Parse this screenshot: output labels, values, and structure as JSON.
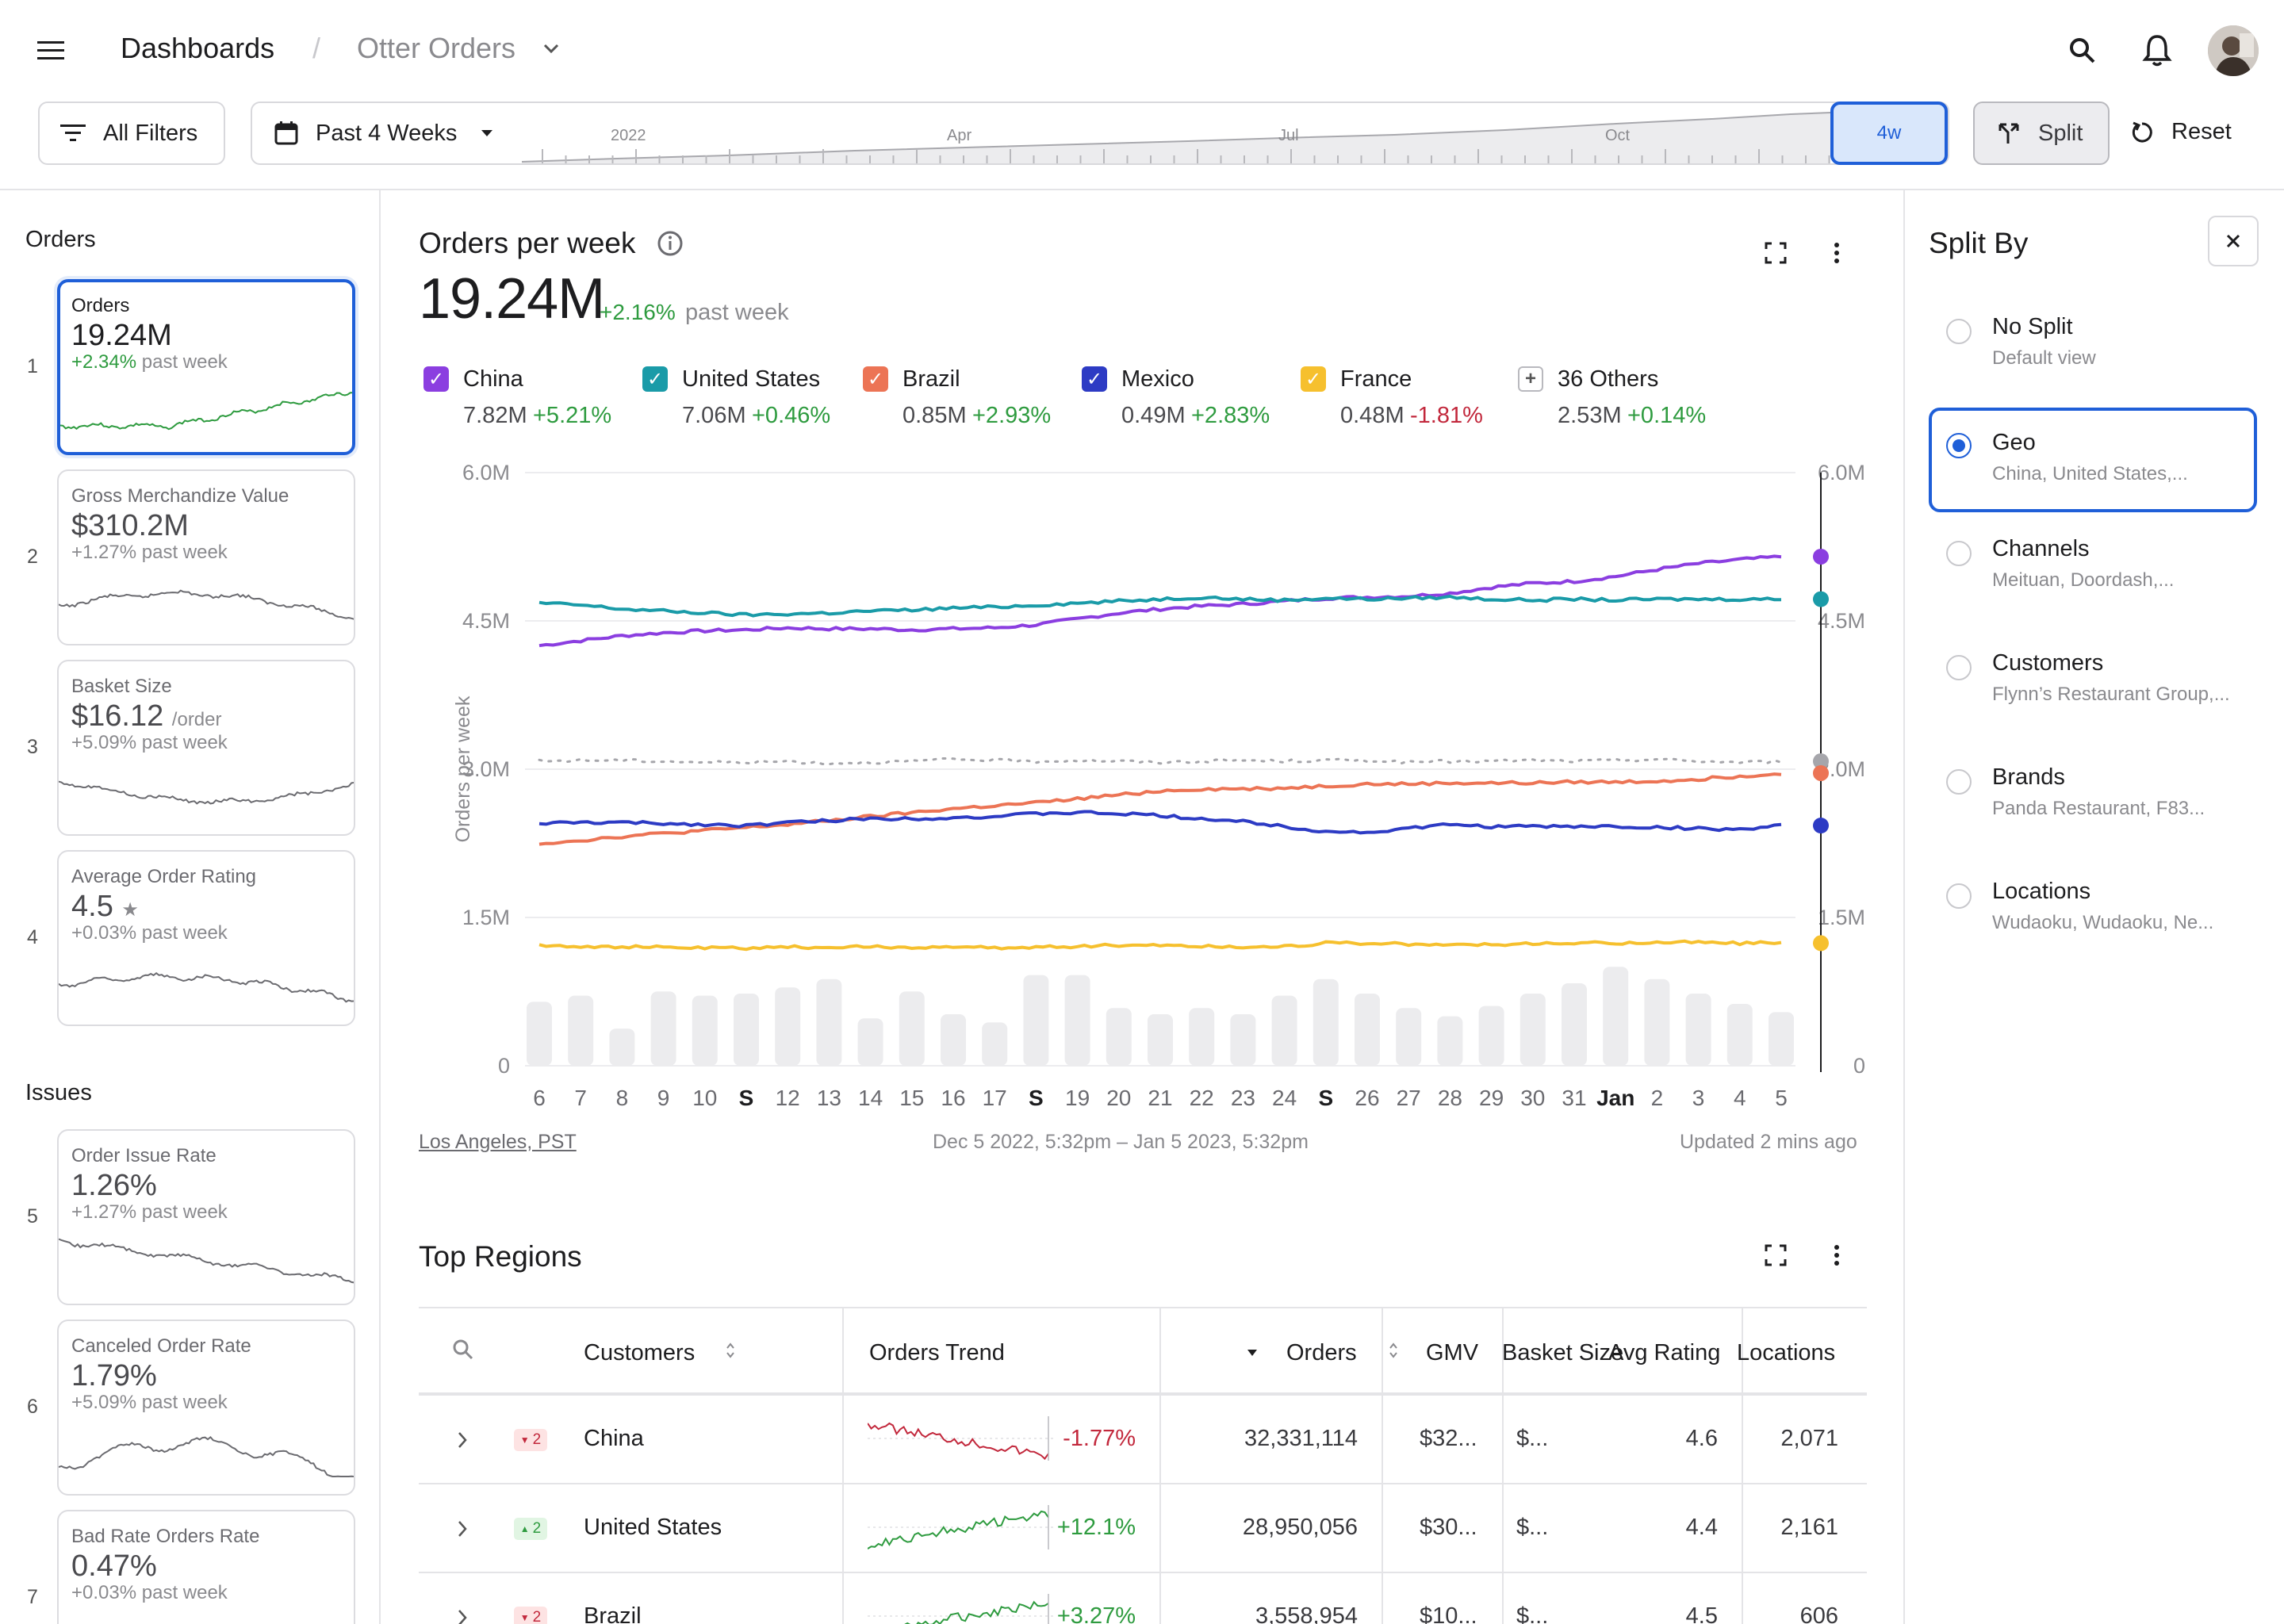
{
  "header": {
    "breadcrumb_root": "Dashboards",
    "breadcrumb_sep": "/",
    "breadcrumb_current": "Otter Orders",
    "all_filters": "All Filters",
    "date_range": "Past 4 Weeks",
    "split": "Split",
    "reset": "Reset",
    "timeline": {
      "labels": [
        "2022",
        "Apr",
        "Jul",
        "Oct"
      ],
      "window_label": "4w"
    }
  },
  "sidebar": {
    "orders_section": "Orders",
    "issues_section": "Issues",
    "cards": [
      {
        "num": "1",
        "title": "Orders",
        "value": "19.24M",
        "unit": "",
        "delta": "+2.34%",
        "delta_suffix": " past week"
      },
      {
        "num": "2",
        "title": "Gross Merchandize Value",
        "value": "$310.2M",
        "unit": "",
        "delta": "+1.27%",
        "delta_suffix": " past week"
      },
      {
        "num": "3",
        "title": "Basket Size",
        "value": "$16.12",
        "unit": "/order",
        "delta": "+5.09%",
        "delta_suffix": " past week"
      },
      {
        "num": "4",
        "title": "Average Order Rating",
        "value": "4.5",
        "unit": "★",
        "delta": "+0.03%",
        "delta_suffix": " past week"
      },
      {
        "num": "5",
        "title": "Order Issue Rate",
        "value": "1.26%",
        "unit": "",
        "delta": "+1.27%",
        "delta_suffix": " past week"
      },
      {
        "num": "6",
        "title": "Canceled Order Rate",
        "value": "1.79%",
        "unit": "",
        "delta": "+5.09%",
        "delta_suffix": " past week"
      },
      {
        "num": "7",
        "title": "Bad Rate Orders Rate",
        "value": "0.47%",
        "unit": "",
        "delta": "+0.03%",
        "delta_suffix": " past week"
      }
    ]
  },
  "chart_card": {
    "title": "Orders per week",
    "value": "19.24M",
    "delta": "+2.16%",
    "delta_suffix": "past week",
    "footer_left": "Los Angeles, PST",
    "footer_center": "Dec 5 2022, 5:32pm – Jan 5 2023, 5:32pm",
    "footer_right": "Updated 2 mins ago",
    "legend": [
      {
        "name": "China",
        "value": "7.82M",
        "delta": "+5.21%",
        "color": "#8b3ee0"
      },
      {
        "name": "United States",
        "value": "7.06M",
        "delta": "+0.46%",
        "color": "#1a9ba8"
      },
      {
        "name": "Brazil",
        "value": "0.85M",
        "delta": "+2.93%",
        "color": "#ec7455"
      },
      {
        "name": "Mexico",
        "value": "0.49M",
        "delta": "+2.83%",
        "color": "#2d3bc4"
      },
      {
        "name": "France",
        "value": "0.48M",
        "delta": "-1.81%",
        "color": "#f6c02e"
      },
      {
        "name": "36 Others",
        "value": "2.53M",
        "delta": "+0.14%",
        "color": "#9e9ea3"
      }
    ]
  },
  "chart_data": {
    "type": "line",
    "ylabel": "Orders per week",
    "ylim": [
      0,
      6000000
    ],
    "yticks": [
      "0",
      "1.5M",
      "3.0M",
      "4.5M",
      "6.0M"
    ],
    "x": [
      "6",
      "7",
      "8",
      "9",
      "10",
      "S",
      "12",
      "13",
      "14",
      "15",
      "16",
      "17",
      "S",
      "19",
      "20",
      "21",
      "22",
      "23",
      "24",
      "S",
      "26",
      "27",
      "28",
      "29",
      "30",
      "31",
      "Jan",
      "2",
      "3",
      "4",
      "5"
    ],
    "bold_ticks": [
      "S",
      "Jan"
    ],
    "series": [
      {
        "name": "China",
        "color": "#8b3ee0",
        "values": [
          4.25,
          4.3,
          4.35,
          4.38,
          4.4,
          4.41,
          4.43,
          4.42,
          4.42,
          4.41,
          4.42,
          4.43,
          4.46,
          4.52,
          4.58,
          4.62,
          4.65,
          4.67,
          4.7,
          4.73,
          4.74,
          4.75,
          4.78,
          4.84,
          4.88,
          4.9,
          4.95,
          5.02,
          5.08,
          5.12,
          5.15
        ]
      },
      {
        "name": "United States",
        "color": "#1a9ba8",
        "values": [
          4.68,
          4.66,
          4.62,
          4.6,
          4.58,
          4.56,
          4.57,
          4.58,
          4.6,
          4.61,
          4.63,
          4.64,
          4.66,
          4.68,
          4.7,
          4.72,
          4.74,
          4.72,
          4.71,
          4.73,
          4.72,
          4.73,
          4.74,
          4.72,
          4.71,
          4.72,
          4.71,
          4.72,
          4.72,
          4.72,
          4.72
        ]
      },
      {
        "name": "36 Others",
        "color": "#a6a6ab",
        "values": [
          3.08,
          3.09,
          3.09,
          3.08,
          3.07,
          3.07,
          3.08,
          3.06,
          3.07,
          3.08,
          3.1,
          3.09,
          3.08,
          3.09,
          3.08,
          3.07,
          3.08,
          3.09,
          3.08,
          3.09,
          3.09,
          3.07,
          3.08,
          3.08,
          3.09,
          3.08,
          3.09,
          3.1,
          3.08,
          3.07,
          3.08
        ]
      },
      {
        "name": "Brazil",
        "color": "#ec7455",
        "values": [
          2.25,
          2.28,
          2.32,
          2.35,
          2.38,
          2.41,
          2.44,
          2.48,
          2.52,
          2.56,
          2.6,
          2.63,
          2.66,
          2.7,
          2.74,
          2.78,
          2.8,
          2.8,
          2.81,
          2.83,
          2.85,
          2.85,
          2.86,
          2.86,
          2.86,
          2.87,
          2.87,
          2.88,
          2.9,
          2.93,
          2.96
        ]
      },
      {
        "name": "Mexico",
        "color": "#2d3bc4",
        "values": [
          2.45,
          2.46,
          2.46,
          2.45,
          2.44,
          2.43,
          2.46,
          2.48,
          2.5,
          2.5,
          2.51,
          2.52,
          2.55,
          2.56,
          2.55,
          2.53,
          2.5,
          2.47,
          2.42,
          2.37,
          2.36,
          2.4,
          2.44,
          2.42,
          2.42,
          2.42,
          2.42,
          2.41,
          2.4,
          2.39,
          2.43
        ]
      },
      {
        "name": "France",
        "color": "#f6c02e",
        "values": [
          1.22,
          1.21,
          1.2,
          1.2,
          1.19,
          1.19,
          1.2,
          1.2,
          1.2,
          1.2,
          1.2,
          1.19,
          1.2,
          1.21,
          1.22,
          1.22,
          1.21,
          1.2,
          1.21,
          1.24,
          1.24,
          1.23,
          1.22,
          1.23,
          1.23,
          1.24,
          1.24,
          1.25,
          1.25,
          1.24,
          1.24
        ]
      }
    ],
    "bars": [
      0.62,
      0.68,
      0.36,
      0.72,
      0.68,
      0.7,
      0.76,
      0.84,
      0.46,
      0.72,
      0.5,
      0.42,
      0.88,
      0.88,
      0.56,
      0.5,
      0.56,
      0.5,
      0.68,
      0.84,
      0.7,
      0.56,
      0.48,
      0.58,
      0.7,
      0.8,
      0.96,
      0.84,
      0.7,
      0.6,
      0.52
    ]
  },
  "regions": {
    "title": "Top Regions",
    "columns": {
      "customers": "Customers",
      "trend": "Orders Trend",
      "orders": "Orders",
      "gmv": "GMV",
      "basket": "Basket Size",
      "rating": "Avg Rating",
      "locations": "Locations"
    },
    "rows": [
      {
        "badge": "2",
        "dir": "dn",
        "name": "China",
        "trend_pct": "-1.77%",
        "trend_color": "#c2283c",
        "orders": "32,331,114",
        "gmv": "$32...",
        "basket": "$...",
        "rating": "4.6",
        "locations": "2,071"
      },
      {
        "badge": "2",
        "dir": "up",
        "name": "United States",
        "trend_pct": "+12.1%",
        "trend_color": "#2e9b3f",
        "orders": "28,950,056",
        "gmv": "$30...",
        "basket": "$...",
        "rating": "4.4",
        "locations": "2,161"
      },
      {
        "badge": "2",
        "dir": "dn",
        "name": "Brazil",
        "trend_pct": "+3.27%",
        "trend_color": "#2e9b3f",
        "orders": "3,558,954",
        "gmv": "$10...",
        "basket": "$...",
        "rating": "4.5",
        "locations": "606"
      }
    ]
  },
  "split_panel": {
    "title": "Split By",
    "options": [
      {
        "label": "No Split",
        "sub": "Default view",
        "selected": false
      },
      {
        "label": "Geo",
        "sub": "China, United States,...",
        "selected": true
      },
      {
        "label": "Channels",
        "sub": "Meituan, Doordash,...",
        "selected": false
      },
      {
        "label": "Customers",
        "sub": "Flynn’s Restaurant Group,...",
        "selected": false
      },
      {
        "label": "Brands",
        "sub": "Panda Restaurant, F83...",
        "selected": false
      },
      {
        "label": "Locations",
        "sub": "Wudaoku, Wudaoku, Ne...",
        "selected": false
      }
    ]
  }
}
